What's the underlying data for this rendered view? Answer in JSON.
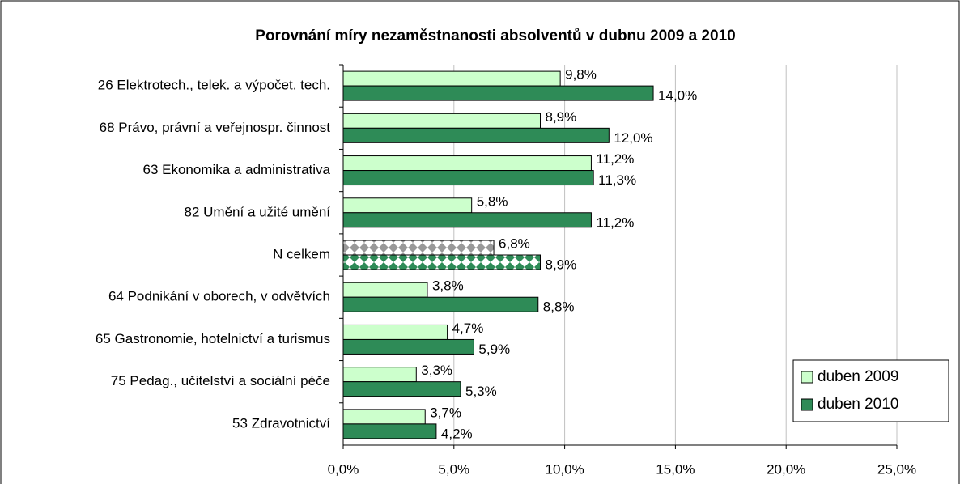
{
  "chart_data": {
    "type": "bar",
    "orientation": "horizontal",
    "title": "Porovnání míry nezaměstnanosti absolventů v dubnu 2009 a 2010",
    "categories": [
      "26 Elektrotech., telek. a výpočet. tech.",
      "68 Právo, právní a veřejnospr. činnost",
      "63 Ekonomika a administrativa",
      "82 Umění a užité umění",
      "N celkem",
      "64 Podnikání v oborech, v odvětvích",
      "65 Gastronomie, hotelnictví a turismus",
      "75 Pedag., učitelství a sociální péče ",
      "53 Zdravotnictví"
    ],
    "series": [
      {
        "name": "duben 2009",
        "color": "#ccffcc",
        "values": [
          9.8,
          8.9,
          11.2,
          5.8,
          6.8,
          3.8,
          4.7,
          3.3,
          3.7
        ],
        "value_labels": [
          "9,8%",
          "8,9%",
          "11,2%",
          "5,8%",
          "6,8%",
          "3,8%",
          "4,7%",
          "3,3%",
          "3,7%"
        ]
      },
      {
        "name": "duben 2010",
        "color": "#2e8b57",
        "values": [
          14.0,
          12.0,
          11.3,
          11.2,
          8.9,
          8.8,
          5.9,
          5.3,
          4.2
        ],
        "value_labels": [
          "14,0%",
          "12,0%",
          "11,3%",
          "11,2%",
          "8,9%",
          "8,8%",
          "5,9%",
          "5,3%",
          "4,2%"
        ]
      }
    ],
    "pattern_categories": [
      4
    ],
    "xlim": [
      0,
      25
    ],
    "xticks": [
      {
        "value": 0,
        "label": "0,0%"
      },
      {
        "value": 5,
        "label": "5,0%"
      },
      {
        "value": 10,
        "label": "10,0%"
      },
      {
        "value": 15,
        "label": "15,0%"
      },
      {
        "value": 20,
        "label": "20,0%"
      },
      {
        "value": 25,
        "label": "25,0%"
      }
    ],
    "grid": true,
    "legend": "lower right"
  }
}
